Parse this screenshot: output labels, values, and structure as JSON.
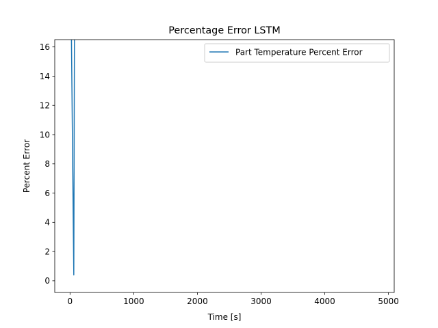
{
  "chart_data": {
    "type": "line",
    "title": "Percentage Error LSTM",
    "xlabel": "Time [s]",
    "ylabel": "Percent Error",
    "xlim": [
      -240,
      5090
    ],
    "ylim": [
      -0.8,
      16.5
    ],
    "xticks": [
      0,
      1000,
      2000,
      3000,
      4000,
      5000
    ],
    "xtick_labels": [
      "0",
      "1000",
      "2000",
      "3000",
      "4000",
      "5000"
    ],
    "yticks": [
      0,
      2,
      4,
      6,
      8,
      10,
      12,
      14,
      16
    ],
    "ytick_labels": [
      "0",
      "2",
      "4",
      "6",
      "8",
      "10",
      "12",
      "14",
      "16"
    ],
    "grid": false,
    "legend_position": "top-right",
    "series": [
      {
        "name": "Part Temperature Percent Error",
        "color": "#1f77b4",
        "x": [
          20,
          59,
          70
        ],
        "y": [
          17.5,
          0.4,
          17.5
        ]
      }
    ]
  }
}
